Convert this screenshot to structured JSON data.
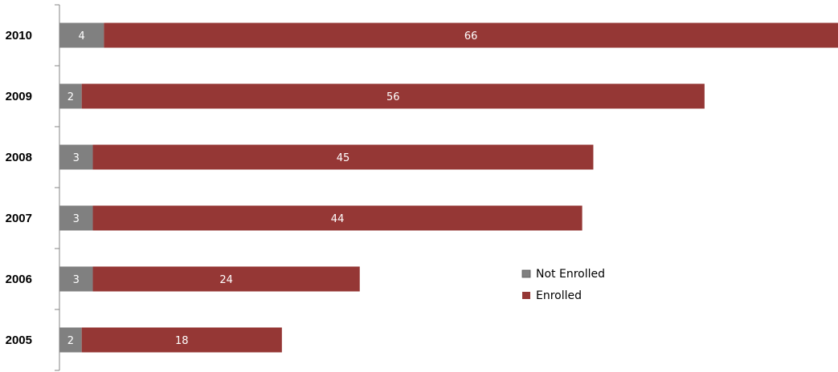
{
  "chart_data": {
    "type": "bar",
    "orientation": "horizontal",
    "stacked": true,
    "categories": [
      "2005",
      "2006",
      "2007",
      "2008",
      "2009",
      "2010"
    ],
    "series": [
      {
        "name": "Not Enrolled",
        "color": "#808080",
        "values": [
          2,
          3,
          3,
          3,
          2,
          4
        ]
      },
      {
        "name": "Enrolled",
        "color": "#953735",
        "values": [
          18,
          24,
          44,
          45,
          56,
          66
        ]
      }
    ],
    "xlim": [
      0,
      70
    ],
    "grid": false,
    "legend_position": "center-right"
  }
}
